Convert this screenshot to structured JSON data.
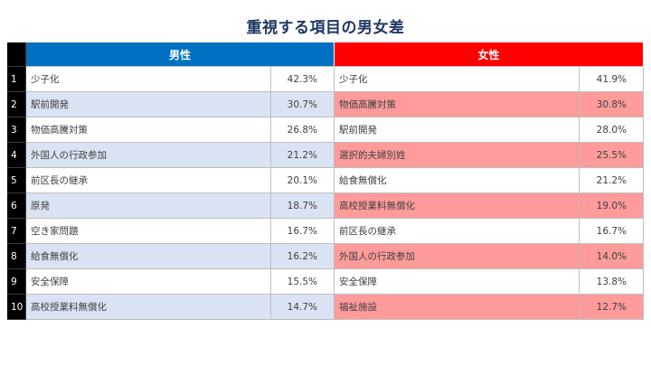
{
  "colors": {
    "title": "#1F3864",
    "rank_bg": "#000000",
    "male_header": "#0070C0",
    "female_header": "#FF0000",
    "male_stripe": "#DAE3F3",
    "female_stripe": "#FF9B9B",
    "row_default": "#FFFFFF"
  },
  "chart_data": {
    "type": "table",
    "title": "重視する項目の男女差",
    "column_groups": [
      "男性",
      "女性"
    ],
    "rows": [
      {
        "rank": "1",
        "male_item": "少子化",
        "male_value": "42.3%",
        "female_item": "少子化",
        "female_value": "41.9%"
      },
      {
        "rank": "2",
        "male_item": "駅前開発",
        "male_value": "30.7%",
        "female_item": "物価高騰対策",
        "female_value": "30.8%"
      },
      {
        "rank": "3",
        "male_item": "物価高騰対策",
        "male_value": "26.8%",
        "female_item": "駅前開発",
        "female_value": "28.0%"
      },
      {
        "rank": "4",
        "male_item": "外国人の行政参加",
        "male_value": "21.2%",
        "female_item": "選択的夫婦別姓",
        "female_value": "25.5%"
      },
      {
        "rank": "5",
        "male_item": "前区長の継承",
        "male_value": "20.1%",
        "female_item": "給食無償化",
        "female_value": "21.2%"
      },
      {
        "rank": "6",
        "male_item": "原発",
        "male_value": "18.7%",
        "female_item": "高校授業料無償化",
        "female_value": "19.0%"
      },
      {
        "rank": "7",
        "male_item": "空き家問題",
        "male_value": "16.7%",
        "female_item": "前区長の継承",
        "female_value": "16.7%"
      },
      {
        "rank": "8",
        "male_item": "給食無償化",
        "male_value": "16.2%",
        "female_item": "外国人の行政参加",
        "female_value": "14.0%"
      },
      {
        "rank": "9",
        "male_item": "安全保障",
        "male_value": "15.5%",
        "female_item": "安全保障",
        "female_value": "13.8%"
      },
      {
        "rank": "10",
        "male_item": "高校授業料無償化",
        "male_value": "14.7%",
        "female_item": "福祉施設",
        "female_value": "12.7%"
      }
    ]
  }
}
